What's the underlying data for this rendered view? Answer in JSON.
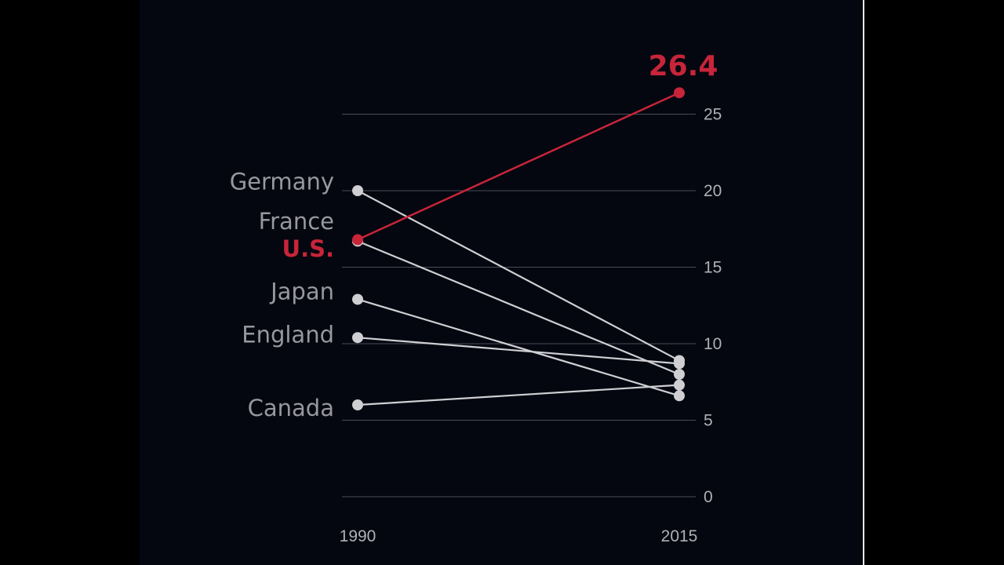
{
  "colors": {
    "background": "#04070f",
    "grid": "#4a4d56",
    "line": "#cfcfd3",
    "highlight": "#c8243a",
    "text": "#98989e",
    "tick": "#b0b0b6"
  },
  "chart_data": {
    "type": "line",
    "title": "",
    "xlabel": "",
    "ylabel": "",
    "x": [
      "1990",
      "2015"
    ],
    "ylim": [
      0,
      27
    ],
    "yticks": [
      0,
      5,
      10,
      15,
      20,
      25
    ],
    "grid": true,
    "series": [
      {
        "name": "Germany",
        "values": [
          20.0,
          8.9
        ],
        "highlight": false
      },
      {
        "name": "France",
        "values": [
          16.7,
          8.0
        ],
        "highlight": false
      },
      {
        "name": "U.S.",
        "values": [
          16.8,
          26.4
        ],
        "highlight": true
      },
      {
        "name": "Japan",
        "values": [
          12.9,
          6.6
        ],
        "highlight": false
      },
      {
        "name": "England",
        "values": [
          10.4,
          8.7
        ],
        "highlight": false
      },
      {
        "name": "Canada",
        "values": [
          6.0,
          7.3
        ],
        "highlight": false
      }
    ],
    "labels": [
      {
        "series": "Germany",
        "text": "Germany",
        "value": 20.6
      },
      {
        "series": "France",
        "text": "France",
        "value": 18.0
      },
      {
        "series": "U.S.",
        "text": "U.S.",
        "value": 16.2
      },
      {
        "series": "Japan",
        "text": "Japan",
        "value": 13.4
      },
      {
        "series": "England",
        "text": "England",
        "value": 10.6
      },
      {
        "series": "Canada",
        "text": "Canada",
        "value": 5.8
      }
    ],
    "annotations": [
      {
        "text": "26.4",
        "series": "U.S.",
        "at": "2015"
      }
    ]
  }
}
